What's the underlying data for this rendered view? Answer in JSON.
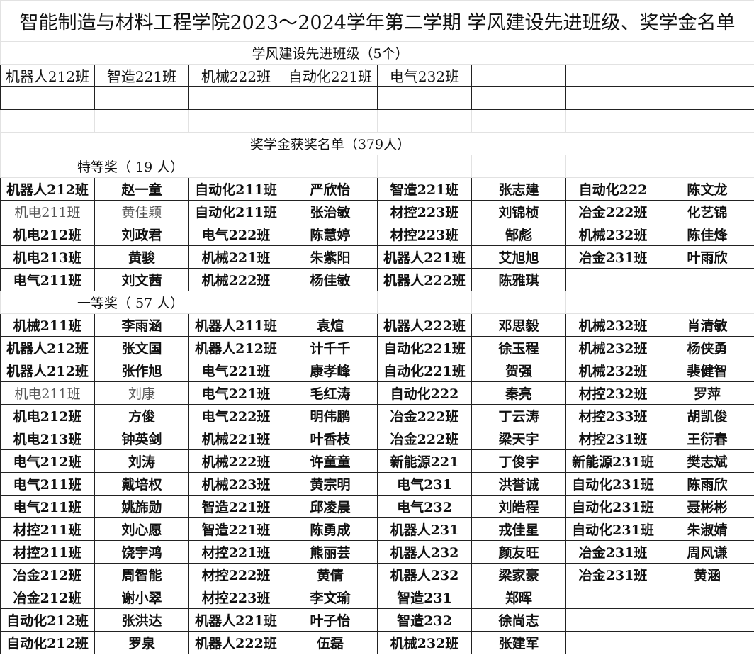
{
  "title": "智能制造与材料工程学院2023～2024学年第二学期 学风建设先进班级、奖学金名单",
  "advanced_classes": {
    "heading": "学风建设先进班级（5个）",
    "classes": [
      "机器人212班",
      "智造221班",
      "机械222班",
      "自动化221班",
      "电气232班"
    ]
  },
  "scholarship": {
    "heading": "奖学金获奖名单（379人）",
    "special": {
      "heading": "特等奖（ 19 人）",
      "rows": [
        [
          "机器人212班",
          "赵一童",
          "自动化211班",
          "严欣怡",
          "智造221班",
          "张志建",
          "自动化222",
          "陈文龙"
        ],
        [
          "机电211班",
          "黄佳颖",
          "自动化211班",
          "张治敏",
          "材控223班",
          "刘锦桢",
          "冶金222班",
          "化艺锦"
        ],
        [
          "机电212班",
          "刘政君",
          "电气222班",
          "陈慧婷",
          "材控223班",
          "郜彪",
          "机械232班",
          "陈佳烽"
        ],
        [
          "机电213班",
          "黄骏",
          "机械221班",
          "朱紫阳",
          "机器人221班",
          "艾旭旭",
          "冶金231班",
          "叶雨欣"
        ],
        [
          "电气211班",
          "刘文茜",
          "机械222班",
          "杨佳敏",
          "机器人222班",
          "陈雅琪",
          "",
          ""
        ]
      ]
    },
    "first": {
      "heading": "一等奖（ 57 人）",
      "rows": [
        [
          "机械211班",
          "李雨涵",
          "机器人211班",
          "袁煊",
          "机器人222班",
          "邓思毅",
          "机械232班",
          "肖清敏"
        ],
        [
          "机器人212班",
          "张文国",
          "机器人212班",
          "计千千",
          "自动化221班",
          "徐玉程",
          "机械232班",
          "杨侠勇"
        ],
        [
          "机器人212班",
          "张作旭",
          "电气221班",
          "康孝峰",
          "自动化221班",
          "贺强",
          "机械232班",
          "裴健智"
        ],
        [
          "机电211班",
          "刘康",
          "电气221班",
          "毛红涛",
          "自动化222",
          "秦亮",
          "材控232班",
          "罗萍"
        ],
        [
          "机电212班",
          "方俊",
          "电气222班",
          "明伟鹏",
          "冶金222班",
          "丁云涛",
          "材控233班",
          "胡凯俊"
        ],
        [
          "机电213班",
          "钟英剑",
          "机械221班",
          "叶香枝",
          "冶金222班",
          "梁天宇",
          "材控231班",
          "王衍春"
        ],
        [
          "电气212班",
          "刘涛",
          "机械222班",
          "许童童",
          "新能源221",
          "丁俊宇",
          "新能源231班",
          "樊志斌"
        ],
        [
          "电气211班",
          "戴培权",
          "机械223班",
          "黄宗明",
          "电气231",
          "洪誉诚",
          "自动化231班",
          "陈雨欣"
        ],
        [
          "电气211班",
          "姚旆勋",
          "智造221班",
          "邱凌晨",
          "电气232",
          "刘皓程",
          "自动化231班",
          "聂彬彬"
        ],
        [
          "材控211班",
          "刘心愿",
          "智造221班",
          "陈勇成",
          "机器人231",
          "戎佳星",
          "自动化231班",
          "朱淑婧"
        ],
        [
          "材控211班",
          "饶宇鸿",
          "材控221班",
          "熊丽芸",
          "机器人232",
          "颜友旺",
          "冶金231班",
          "周风谦"
        ],
        [
          "冶金212班",
          "周智能",
          "材控222班",
          "黄倩",
          "机器人232",
          "梁家豪",
          "冶金231班",
          "黄涵"
        ],
        [
          "冶金212班",
          "谢小翠",
          "材控223班",
          "李文瑜",
          "智造231",
          "郑晖",
          "",
          ""
        ],
        [
          "自动化212班",
          "张洪达",
          "机器人221班",
          "叶子怡",
          "智造232",
          "徐尚志",
          "",
          ""
        ],
        [
          "自动化212班",
          "罗泉",
          "机器人222班",
          "伍磊",
          "机械232班",
          "张建军",
          "",
          ""
        ]
      ]
    }
  }
}
